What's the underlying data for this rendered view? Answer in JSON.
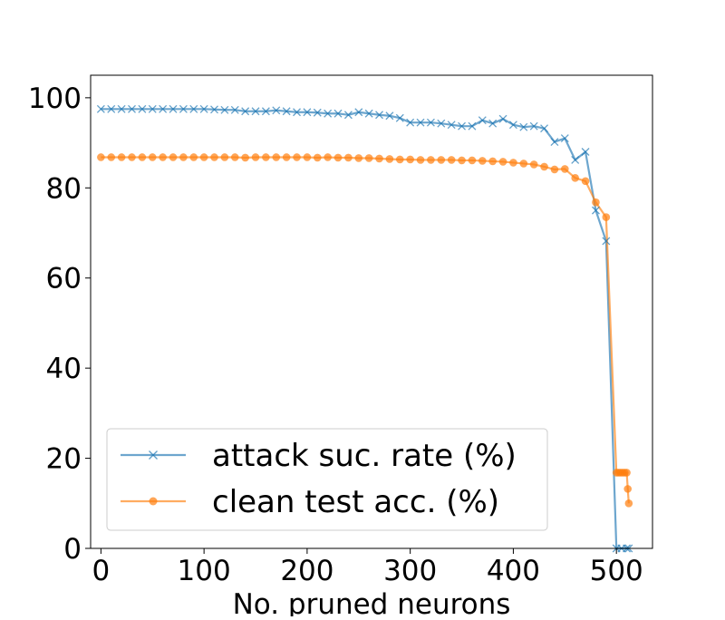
{
  "chart_data": {
    "type": "line",
    "title": "",
    "xlabel": "No. pruned neurons",
    "ylabel": "",
    "xlim": [
      -10,
      535
    ],
    "ylim": [
      0,
      105
    ],
    "xticks": [
      0,
      100,
      200,
      300,
      400,
      500
    ],
    "yticks": [
      0,
      20,
      40,
      60,
      80,
      100
    ],
    "grid": false,
    "legend_position": "lower-left",
    "series": [
      {
        "name": "attack suc. rate (%)",
        "color": "#1f77b4",
        "marker": "x",
        "x": [
          0,
          10,
          20,
          30,
          40,
          50,
          60,
          70,
          80,
          90,
          100,
          110,
          120,
          130,
          140,
          150,
          160,
          170,
          180,
          190,
          200,
          210,
          220,
          230,
          240,
          250,
          260,
          270,
          280,
          290,
          300,
          310,
          320,
          330,
          340,
          350,
          360,
          370,
          380,
          390,
          400,
          410,
          420,
          430,
          440,
          450,
          460,
          470,
          480,
          490,
          500,
          505,
          510,
          512
        ],
        "y": [
          97.5,
          97.5,
          97.5,
          97.5,
          97.5,
          97.5,
          97.5,
          97.5,
          97.5,
          97.5,
          97.5,
          97.4,
          97.3,
          97.3,
          97,
          97,
          97,
          97.2,
          97,
          96.8,
          96.8,
          96.7,
          96.5,
          96.5,
          96.2,
          96.8,
          96.5,
          96.2,
          96,
          95.5,
          94.5,
          94.5,
          94.5,
          94.3,
          94,
          93.7,
          93.7,
          95,
          94.3,
          95.3,
          94,
          93.5,
          93.7,
          93.2,
          90.2,
          91,
          86.2,
          88,
          75,
          68.2,
          0,
          0,
          0,
          0
        ]
      },
      {
        "name": "clean test acc. (%)",
        "color": "#ff7f0e",
        "marker": "o",
        "x": [
          0,
          10,
          20,
          30,
          40,
          50,
          60,
          70,
          80,
          90,
          100,
          110,
          120,
          130,
          140,
          150,
          160,
          170,
          180,
          190,
          200,
          210,
          220,
          230,
          240,
          250,
          260,
          270,
          280,
          290,
          300,
          310,
          320,
          330,
          340,
          350,
          360,
          370,
          380,
          390,
          400,
          410,
          420,
          430,
          440,
          450,
          460,
          470,
          480,
          490,
          500,
          502,
          504,
          506,
          508,
          510,
          511,
          512
        ],
        "y": [
          86.8,
          86.8,
          86.8,
          86.8,
          86.8,
          86.8,
          86.8,
          86.8,
          86.8,
          86.8,
          86.8,
          86.8,
          86.8,
          86.8,
          86.7,
          86.8,
          86.8,
          86.8,
          86.8,
          86.8,
          86.8,
          86.7,
          86.8,
          86.7,
          86.7,
          86.6,
          86.6,
          86.5,
          86.4,
          86.3,
          86.3,
          86.2,
          86.2,
          86.2,
          86.2,
          86.1,
          86.1,
          86,
          85.9,
          85.8,
          85.6,
          85.4,
          85.2,
          84.7,
          84.1,
          84.2,
          82.2,
          81.5,
          76.8,
          73.5,
          16.8,
          16.8,
          16.8,
          16.8,
          16.8,
          16.8,
          13.2,
          10
        ]
      }
    ]
  }
}
